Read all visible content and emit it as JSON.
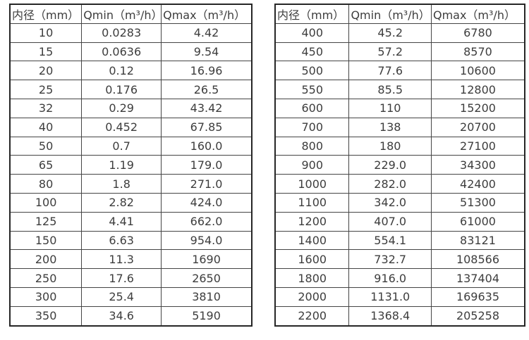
{
  "page": {
    "background_color": "#ffffff",
    "text_color": "#3d3d3d",
    "outer_border_color": "#262626",
    "inner_border_color": "#454545"
  },
  "tables": [
    {
      "name": "flow-spec-table-small-diameters",
      "headers": [
        "内径（mm）",
        "Qmin（m³/h）",
        "Qmax（m³/h）"
      ],
      "rows": [
        [
          "10",
          "0.0283",
          "4.42"
        ],
        [
          "15",
          "0.0636",
          "9.54"
        ],
        [
          "20",
          "0.12",
          "16.96"
        ],
        [
          "25",
          "0.176",
          "26.5"
        ],
        [
          "32",
          "0.29",
          "43.42"
        ],
        [
          "40",
          "0.452",
          "67.85"
        ],
        [
          "50",
          "0.7",
          "160.0"
        ],
        [
          "65",
          "1.19",
          "179.0"
        ],
        [
          "80",
          "1.8",
          "271.0"
        ],
        [
          "100",
          "2.82",
          "424.0"
        ],
        [
          "125",
          "4.41",
          "662.0"
        ],
        [
          "150",
          "6.63",
          "954.0"
        ],
        [
          "200",
          "11.3",
          "1690"
        ],
        [
          "250",
          "17.6",
          "2650"
        ],
        [
          "300",
          "25.4",
          "3810"
        ],
        [
          "350",
          "34.6",
          "5190"
        ]
      ]
    },
    {
      "name": "flow-spec-table-large-diameters",
      "headers": [
        "内径（mm）",
        "Qmin（m³/h）",
        "Qmax（m³/h）"
      ],
      "rows": [
        [
          "400",
          "45.2",
          "6780"
        ],
        [
          "450",
          "57.2",
          "8570"
        ],
        [
          "500",
          "77.6",
          "10600"
        ],
        [
          "550",
          "85.5",
          "12800"
        ],
        [
          "600",
          "110",
          "15200"
        ],
        [
          "700",
          "138",
          "20700"
        ],
        [
          "800",
          "180",
          "27100"
        ],
        [
          "900",
          "229.0",
          "34300"
        ],
        [
          "1000",
          "282.0",
          "42400"
        ],
        [
          "1100",
          "342.0",
          "51300"
        ],
        [
          "1200",
          "407.0",
          "61000"
        ],
        [
          "1400",
          "554.1",
          "83121"
        ],
        [
          "1600",
          "732.7",
          "108566"
        ],
        [
          "1800",
          "916.0",
          "137404"
        ],
        [
          "2000",
          "1131.0",
          "169635"
        ],
        [
          "2200",
          "1368.4",
          "205258"
        ]
      ]
    }
  ]
}
